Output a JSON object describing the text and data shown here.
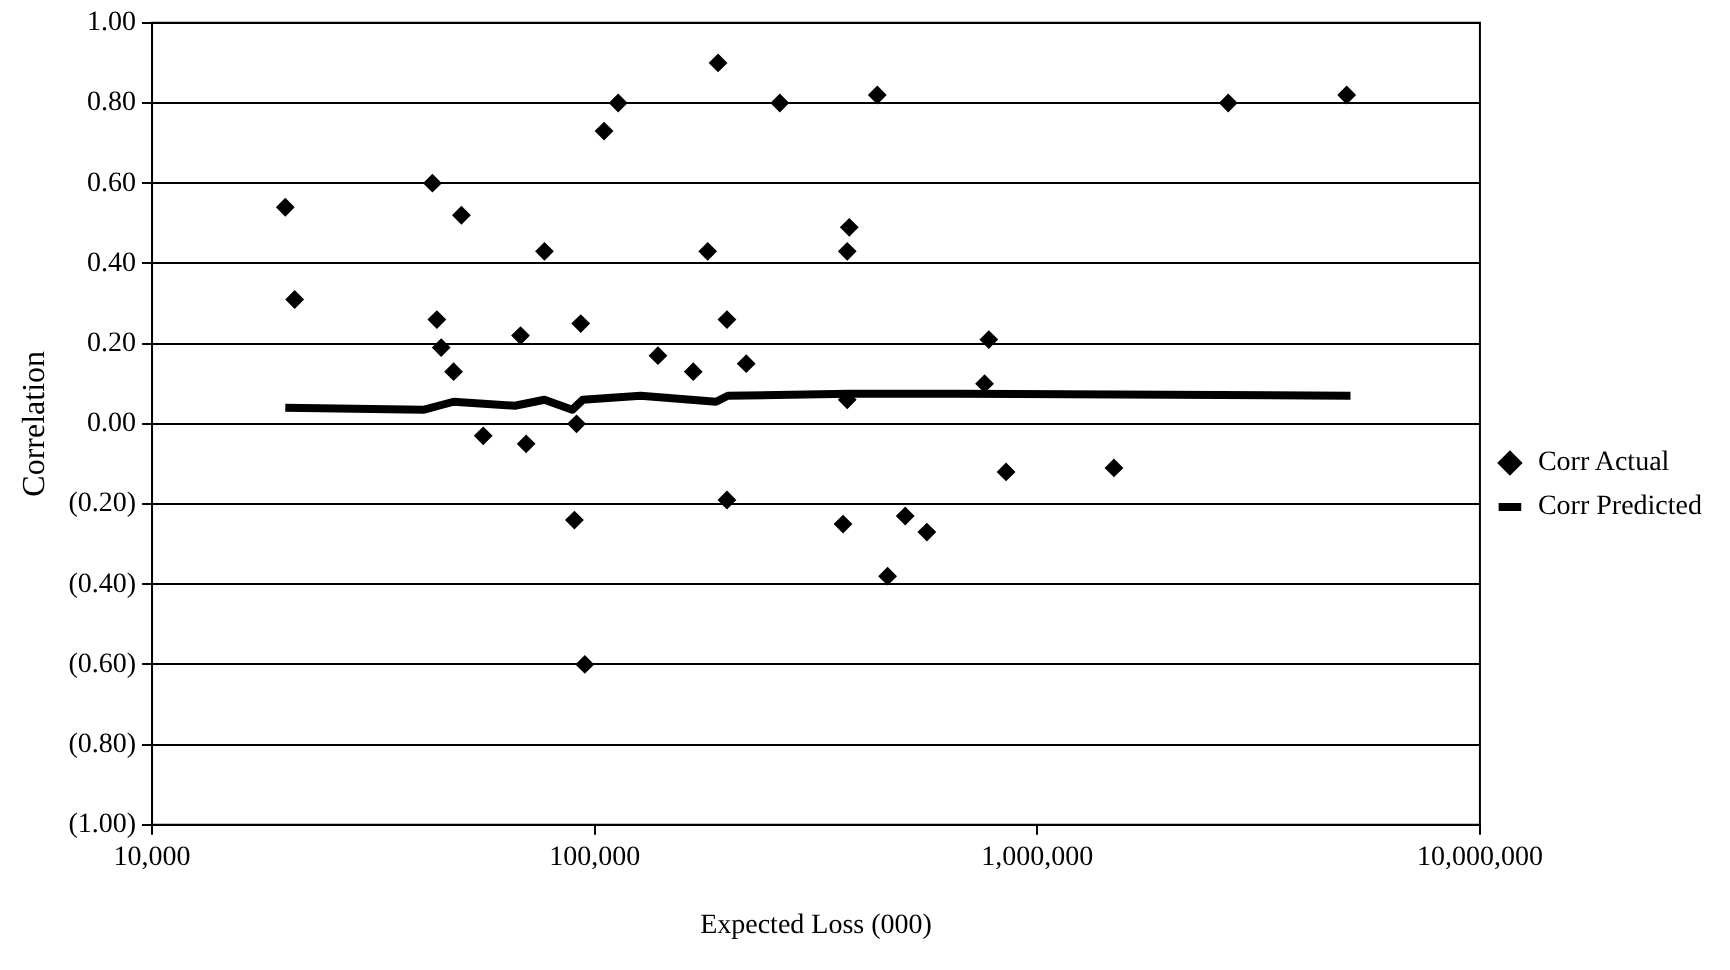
{
  "chart_data": {
    "type": "scatter",
    "xlabel": "Expected Loss (000)",
    "ylabel": "Correlation",
    "log": "x",
    "grid": "y",
    "legend": "right",
    "xlim": [
      10000,
      10000000
    ],
    "xticks": [
      {
        "value": 10000,
        "label": "10,000"
      },
      {
        "value": 100000,
        "label": "100,000"
      },
      {
        "value": 1000000,
        "label": "1,000,000"
      },
      {
        "value": 10000000,
        "label": "10,000,000"
      }
    ],
    "ylim": [
      -1,
      1
    ],
    "yticks": [
      {
        "value": 1,
        "label": "1.00"
      },
      {
        "value": 0.8,
        "label": "0.80"
      },
      {
        "value": 0.6,
        "label": "0.60"
      },
      {
        "value": 0.4,
        "label": "0.40"
      },
      {
        "value": 0.2,
        "label": "0.20"
      },
      {
        "value": 0,
        "label": "0.00"
      },
      {
        "value": -0.2,
        "label": "(0.20)"
      },
      {
        "value": -0.4,
        "label": "(0.40)"
      },
      {
        "value": -0.6,
        "label": "(0.60)"
      },
      {
        "value": -0.8,
        "label": "(0.80)"
      },
      {
        "value": -1,
        "label": "(1.00)"
      }
    ],
    "series": [
      {
        "name": "Corr Actual",
        "type": "scatter",
        "marker": "diamond",
        "color": "#000000",
        "x": [
          20000,
          21000,
          43000,
          50000,
          44000,
          45000,
          48000,
          77000,
          68000,
          93000,
          105000,
          113000,
          190000,
          262000,
          435000,
          180000,
          199000,
          139000,
          167000,
          220000,
          376000,
          372000,
          372000,
          56000,
          70000,
          91000,
          90000,
          95000,
          199000,
          364000,
          503000,
          563000,
          459000,
          2700000,
          5000000,
          777000,
          760000,
          850000,
          1490000
        ],
        "values": [
          0.54,
          0.31,
          0.6,
          0.52,
          0.26,
          0.19,
          0.13,
          0.43,
          0.22,
          0.25,
          0.73,
          0.8,
          0.9,
          0.8,
          0.82,
          0.43,
          0.26,
          0.17,
          0.13,
          0.15,
          0.49,
          0.43,
          0.06,
          -0.03,
          -0.05,
          0,
          -0.24,
          -0.6,
          -0.19,
          -0.25,
          -0.23,
          -0.27,
          -0.38,
          0.8,
          0.82,
          0.21,
          0.1,
          -0.12,
          -0.11
        ]
      },
      {
        "name": "Corr Predicted",
        "type": "line",
        "marker": "none",
        "line_style": "solid",
        "color": "#000000",
        "x": [
          20000,
          41000,
          48000,
          66000,
          77000,
          89000,
          94000,
          127000,
          188000,
          200000,
          375000,
          660000,
          5100000
        ],
        "values": [
          0.04,
          0.035,
          0.055,
          0.045,
          0.06,
          0.035,
          0.06,
          0.07,
          0.055,
          0.07,
          0.075,
          0.075,
          0.07
        ]
      }
    ]
  }
}
